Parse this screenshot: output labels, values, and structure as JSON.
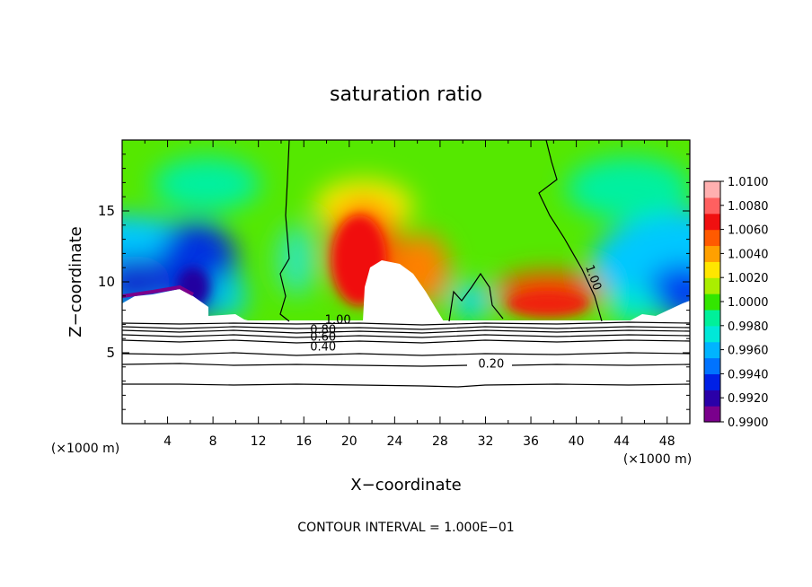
{
  "chart_data": {
    "type": "heatmap",
    "title": "saturation ratio",
    "xlabel": "X−coordinate",
    "ylabel": "Z−coordinate",
    "x_unit_left": "(×1000 m)",
    "x_unit_right": "(×1000 m)",
    "footer": "CONTOUR INTERVAL = 1.000E−01",
    "xlim": [
      0,
      50
    ],
    "ylim": [
      0,
      20
    ],
    "x_ticks": [
      "4",
      "8",
      "12",
      "16",
      "20",
      "24",
      "28",
      "32",
      "36",
      "40",
      "44",
      "48"
    ],
    "y_ticks": [
      "5",
      "10",
      "15"
    ],
    "colorbar_ticks": [
      "1.0100",
      "1.0080",
      "1.0060",
      "1.0040",
      "1.0020",
      "1.0000",
      "0.9980",
      "0.9960",
      "0.9940",
      "0.9920",
      "0.9900"
    ],
    "colorbar_range": [
      0.99,
      1.01
    ],
    "contour_labels": [
      {
        "text": "1.00",
        "x": 19,
        "z": 7.3
      },
      {
        "text": "0.80",
        "x": 17.7,
        "z": 6.6
      },
      {
        "text": "0.60",
        "x": 17.7,
        "z": 6.1
      },
      {
        "text": "0.40",
        "x": 17.7,
        "z": 5.4
      },
      {
        "text": "0.20",
        "x": 32.5,
        "z": 4.2
      },
      {
        "text": "1.00",
        "x": 41.5,
        "z": 10.3
      }
    ],
    "colors": [
      "#7a008c",
      "#2a00a8",
      "#0020e6",
      "#0073ff",
      "#00b4ff",
      "#00e8d8",
      "#00f09a",
      "#33e600",
      "#aaee00",
      "#ffe600",
      "#ffa000",
      "#ff5a00",
      "#f01010",
      "#ff6060",
      "#ffb0b0"
    ]
  }
}
